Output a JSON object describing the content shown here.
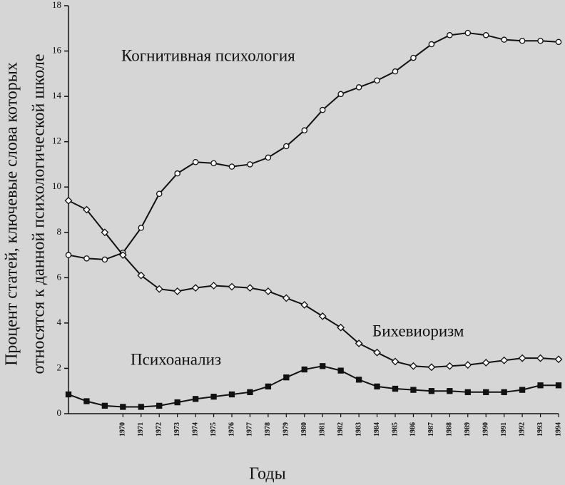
{
  "chart_data": {
    "type": "line",
    "y_label": [
      "Процент статей, ключевые слова которых",
      "относятся к данной психологической школе"
    ],
    "x_label": "Годы",
    "x": [
      1967,
      1968,
      1969,
      1970,
      1971,
      1972,
      1973,
      1974,
      1975,
      1976,
      1977,
      1978,
      1979,
      1980,
      1981,
      1982,
      1983,
      1984,
      1985,
      1986,
      1987,
      1988,
      1989,
      1990,
      1991,
      1992,
      1993,
      1994
    ],
    "xlim": [
      1967,
      1994
    ],
    "xticks": [
      1970,
      1971,
      1972,
      1973,
      1974,
      1975,
      1976,
      1977,
      1978,
      1979,
      1980,
      1981,
      1982,
      1983,
      1984,
      1985,
      1986,
      1987,
      1988,
      1989,
      1990,
      1991,
      1992,
      1993,
      1994
    ],
    "ylim": [
      0,
      18
    ],
    "yticks": [
      0,
      2,
      4,
      6,
      8,
      10,
      12,
      14,
      16,
      18
    ],
    "series": [
      {
        "name": "Когнитивная психология",
        "color": "#111111",
        "marker": "circle",
        "values": [
          7.0,
          6.85,
          6.8,
          7.1,
          8.2,
          9.7,
          10.6,
          11.1,
          11.05,
          10.9,
          11.0,
          11.3,
          11.8,
          12.5,
          13.4,
          14.1,
          14.4,
          14.7,
          15.1,
          15.7,
          16.3,
          16.7,
          16.8,
          16.7,
          16.5,
          16.45,
          16.45,
          16.4
        ]
      },
      {
        "name": "Бихевиоризм",
        "color": "#111111",
        "marker": "diamond",
        "values": [
          9.4,
          9.0,
          8.0,
          7.0,
          6.1,
          5.5,
          5.4,
          5.55,
          5.65,
          5.6,
          5.55,
          5.4,
          5.1,
          4.8,
          4.3,
          3.8,
          3.1,
          2.7,
          2.3,
          2.1,
          2.05,
          2.1,
          2.15,
          2.25,
          2.35,
          2.45,
          2.45,
          2.4
        ]
      },
      {
        "name": "Психоанализ",
        "color": "#111111",
        "marker": "square",
        "values": [
          0.85,
          0.55,
          0.35,
          0.3,
          0.3,
          0.35,
          0.5,
          0.65,
          0.75,
          0.85,
          0.95,
          1.2,
          1.6,
          1.95,
          2.1,
          1.9,
          1.5,
          1.2,
          1.1,
          1.05,
          1.0,
          1.0,
          0.95,
          0.95,
          0.95,
          1.05,
          1.25,
          1.25
        ]
      }
    ]
  }
}
